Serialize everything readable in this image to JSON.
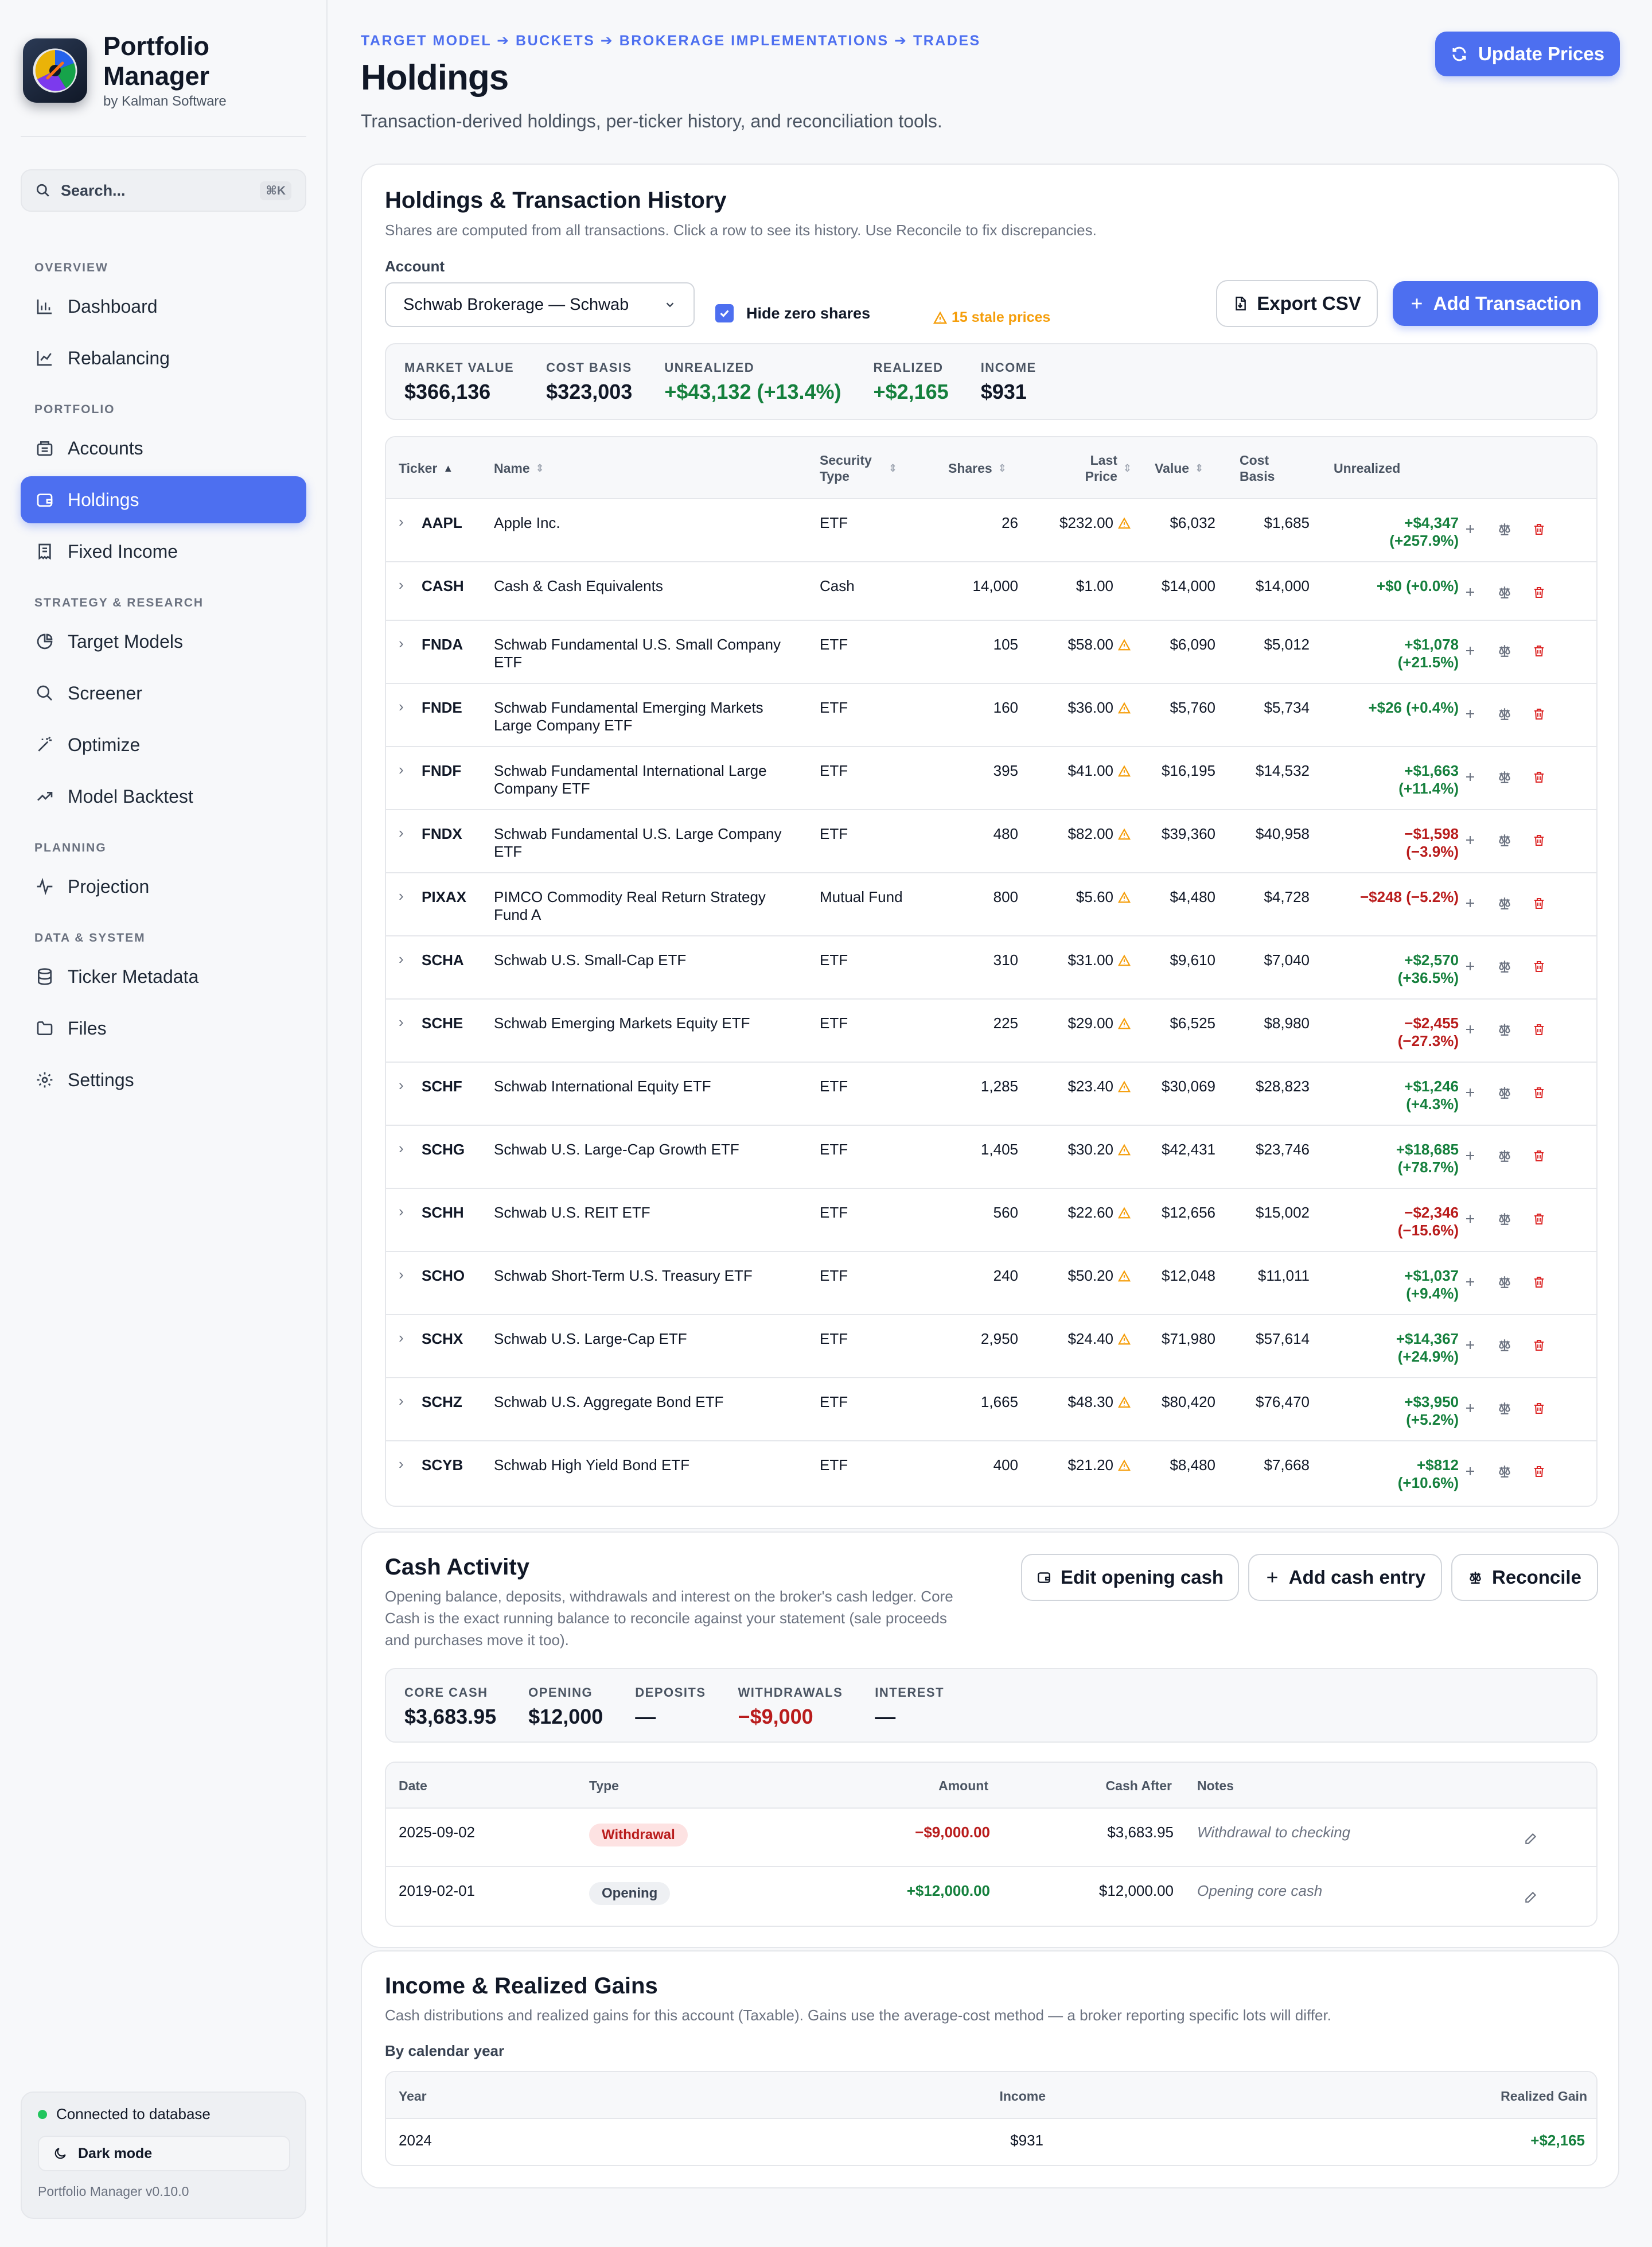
{
  "app": {
    "title": "Portfolio Manager",
    "company": "by Kalman Software",
    "version": "Portfolio Manager v0.10.0"
  },
  "search": {
    "placeholder": "Search...",
    "shortcut": "⌘K"
  },
  "sidebar": {
    "sections": [
      {
        "label": "OVERVIEW",
        "items": [
          {
            "label": "Dashboard",
            "icon": "bar-chart-icon"
          },
          {
            "label": "Rebalancing",
            "icon": "line-chart-icon"
          }
        ]
      },
      {
        "label": "PORTFOLIO",
        "items": [
          {
            "label": "Accounts",
            "icon": "bank-icon"
          },
          {
            "label": "Holdings",
            "icon": "wallet-icon",
            "active": true
          },
          {
            "label": "Fixed Income",
            "icon": "receipt-icon"
          }
        ]
      },
      {
        "label": "STRATEGY & RESEARCH",
        "items": [
          {
            "label": "Target Models",
            "icon": "pie-chart-icon"
          },
          {
            "label": "Screener",
            "icon": "search-icon"
          },
          {
            "label": "Optimize",
            "icon": "magic-wand-icon"
          },
          {
            "label": "Model Backtest",
            "icon": "trending-up-icon"
          }
        ]
      },
      {
        "label": "PLANNING",
        "items": [
          {
            "label": "Projection",
            "icon": "activity-icon"
          }
        ]
      },
      {
        "label": "DATA & SYSTEM",
        "items": [
          {
            "label": "Ticker Metadata",
            "icon": "database-icon"
          },
          {
            "label": "Files",
            "icon": "folder-icon"
          },
          {
            "label": "Settings",
            "icon": "gear-icon"
          }
        ]
      }
    ],
    "status": "Connected to database",
    "dark_mode": "Dark mode"
  },
  "page": {
    "breadcrumb": "TARGET MODEL ➔ BUCKETS ➔ BROKERAGE IMPLEMENTATIONS ➔ TRADES",
    "title": "Holdings",
    "subtitle": "Transaction-derived holdings, per-ticker history, and reconciliation tools.",
    "update_prices": "Update Prices"
  },
  "holdings": {
    "title": "Holdings & Transaction History",
    "subtitle": "Shares are computed from all transactions. Click a row to see its history. Use Reconcile to fix discrepancies.",
    "account_label": "Account",
    "account_value": "Schwab Brokerage — Schwab",
    "hide_zero": "Hide zero shares",
    "stale": "15 stale prices",
    "export": "Export CSV",
    "add_tx": "Add Transaction",
    "summary": [
      {
        "label": "MARKET VALUE",
        "value": "$366,136",
        "tone": ""
      },
      {
        "label": "COST BASIS",
        "value": "$323,003",
        "tone": ""
      },
      {
        "label": "UNREALIZED",
        "value": "+$43,132 (+13.4%)",
        "tone": "green"
      },
      {
        "label": "REALIZED",
        "value": "+$2,165",
        "tone": "green"
      },
      {
        "label": "INCOME",
        "value": "$931",
        "tone": ""
      }
    ],
    "columns": {
      "ticker": "Ticker",
      "name": "Name",
      "type": "Security Type",
      "shares": "Shares",
      "price": "Last Price",
      "value": "Value",
      "cost": "Cost Basis",
      "unrealized": "Unrealized"
    },
    "rows": [
      {
        "ticker": "AAPL",
        "name": "Apple Inc.",
        "type": "ETF",
        "shares": "26",
        "price": "$232.00",
        "stale": true,
        "value": "$6,032",
        "cost": "$1,685",
        "unr1": "+$4,347",
        "unr2": "(+257.9%)",
        "tone": "green"
      },
      {
        "ticker": "CASH",
        "name": "Cash & Cash Equivalents",
        "type": "Cash",
        "shares": "14,000",
        "price": "$1.00",
        "stale": false,
        "value": "$14,000",
        "cost": "$14,000",
        "unr1": "+$0 (+0.0%)",
        "unr2": "",
        "tone": "green",
        "short": true
      },
      {
        "ticker": "FNDA",
        "name": "Schwab Fundamental U.S. Small Company ETF",
        "type": "ETF",
        "shares": "105",
        "price": "$58.00",
        "stale": true,
        "value": "$6,090",
        "cost": "$5,012",
        "unr1": "+$1,078",
        "unr2": "(+21.5%)",
        "tone": "green"
      },
      {
        "ticker": "FNDE",
        "name": "Schwab Fundamental Emerging Markets Large Company ETF",
        "type": "ETF",
        "shares": "160",
        "price": "$36.00",
        "stale": true,
        "value": "$5,760",
        "cost": "$5,734",
        "unr1": "+$26 (+0.4%)",
        "unr2": "",
        "tone": "green"
      },
      {
        "ticker": "FNDF",
        "name": "Schwab Fundamental International Large Company ETF",
        "type": "ETF",
        "shares": "395",
        "price": "$41.00",
        "stale": true,
        "value": "$16,195",
        "cost": "$14,532",
        "unr1": "+$1,663",
        "unr2": "(+11.4%)",
        "tone": "green"
      },
      {
        "ticker": "FNDX",
        "name": "Schwab Fundamental U.S. Large Company ETF",
        "type": "ETF",
        "shares": "480",
        "price": "$82.00",
        "stale": true,
        "value": "$39,360",
        "cost": "$40,958",
        "unr1": "−$1,598",
        "unr2": "(−3.9%)",
        "tone": "red"
      },
      {
        "ticker": "PIXAX",
        "name": "PIMCO Commodity Real Return Strategy Fund A",
        "type": "Mutual Fund",
        "shares": "800",
        "price": "$5.60",
        "stale": true,
        "value": "$4,480",
        "cost": "$4,728",
        "unr1": "−$248 (−5.2%)",
        "unr2": "",
        "tone": "red"
      },
      {
        "ticker": "SCHA",
        "name": "Schwab U.S. Small-Cap ETF",
        "type": "ETF",
        "shares": "310",
        "price": "$31.00",
        "stale": true,
        "value": "$9,610",
        "cost": "$7,040",
        "unr1": "+$2,570",
        "unr2": "(+36.5%)",
        "tone": "green"
      },
      {
        "ticker": "SCHE",
        "name": "Schwab Emerging Markets Equity ETF",
        "type": "ETF",
        "shares": "225",
        "price": "$29.00",
        "stale": true,
        "value": "$6,525",
        "cost": "$8,980",
        "unr1": "−$2,455",
        "unr2": "(−27.3%)",
        "tone": "red"
      },
      {
        "ticker": "SCHF",
        "name": "Schwab International Equity ETF",
        "type": "ETF",
        "shares": "1,285",
        "price": "$23.40",
        "stale": true,
        "value": "$30,069",
        "cost": "$28,823",
        "unr1": "+$1,246",
        "unr2": "(+4.3%)",
        "tone": "green"
      },
      {
        "ticker": "SCHG",
        "name": "Schwab U.S. Large-Cap Growth ETF",
        "type": "ETF",
        "shares": "1,405",
        "price": "$30.20",
        "stale": true,
        "value": "$42,431",
        "cost": "$23,746",
        "unr1": "+$18,685",
        "unr2": "(+78.7%)",
        "tone": "green"
      },
      {
        "ticker": "SCHH",
        "name": "Schwab U.S. REIT ETF",
        "type": "ETF",
        "shares": "560",
        "price": "$22.60",
        "stale": true,
        "value": "$12,656",
        "cost": "$15,002",
        "unr1": "−$2,346",
        "unr2": "(−15.6%)",
        "tone": "red"
      },
      {
        "ticker": "SCHO",
        "name": "Schwab Short-Term U.S. Treasury ETF",
        "type": "ETF",
        "shares": "240",
        "price": "$50.20",
        "stale": true,
        "value": "$12,048",
        "cost": "$11,011",
        "unr1": "+$1,037",
        "unr2": "(+9.4%)",
        "tone": "green"
      },
      {
        "ticker": "SCHX",
        "name": "Schwab U.S. Large-Cap ETF",
        "type": "ETF",
        "shares": "2,950",
        "price": "$24.40",
        "stale": true,
        "value": "$71,980",
        "cost": "$57,614",
        "unr1": "+$14,367",
        "unr2": "(+24.9%)",
        "tone": "green"
      },
      {
        "ticker": "SCHZ",
        "name": "Schwab U.S. Aggregate Bond ETF",
        "type": "ETF",
        "shares": "1,665",
        "price": "$48.30",
        "stale": true,
        "value": "$80,420",
        "cost": "$76,470",
        "unr1": "+$3,950",
        "unr2": "(+5.2%)",
        "tone": "green"
      },
      {
        "ticker": "SCYB",
        "name": "Schwab High Yield Bond ETF",
        "type": "ETF",
        "shares": "400",
        "price": "$21.20",
        "stale": true,
        "value": "$8,480",
        "cost": "$7,668",
        "unr1": "+$812",
        "unr2": "(+10.6%)",
        "tone": "green"
      }
    ]
  },
  "cash": {
    "title": "Cash Activity",
    "subtitle_lines": [
      "Opening balance, deposits, withdrawals and interest on the broker's cash ledger. Core",
      "Cash is the exact running balance to reconcile against your statement (sale proceeds",
      "and purchases move it too)."
    ],
    "edit_opening": "Edit opening cash",
    "add_entry": "Add cash entry",
    "reconcile": "Reconcile",
    "summary": [
      {
        "label": "CORE CASH",
        "value": "$3,683.95",
        "tone": ""
      },
      {
        "label": "OPENING",
        "value": "$12,000",
        "tone": ""
      },
      {
        "label": "DEPOSITS",
        "value": "—",
        "tone": ""
      },
      {
        "label": "WITHDRAWALS",
        "value": "−$9,000",
        "tone": "red"
      },
      {
        "label": "INTEREST",
        "value": "—",
        "tone": ""
      }
    ],
    "columns": {
      "date": "Date",
      "type": "Type",
      "amount": "Amount",
      "after": "Cash After",
      "notes": "Notes"
    },
    "rows": [
      {
        "date": "2025-09-02",
        "type": "Withdrawal",
        "type_tone": "red",
        "amount": "−$9,000.00",
        "tone": "red",
        "after": "$3,683.95",
        "notes": "Withdrawal to checking"
      },
      {
        "date": "2019-02-01",
        "type": "Opening",
        "type_tone": "gray",
        "amount": "+$12,000.00",
        "tone": "green",
        "after": "$12,000.00",
        "notes": "Opening core cash"
      }
    ]
  },
  "income": {
    "title": "Income & Realized Gains",
    "subtitle": "Cash distributions and realized gains for this account (Taxable). Gains use the average-cost method — a broker reporting specific lots will differ.",
    "by_year": "By calendar year",
    "columns": {
      "year": "Year",
      "income": "Income",
      "gain": "Realized Gain"
    },
    "rows": [
      {
        "year": "2024",
        "income": "$931",
        "gain": "+$2,165"
      }
    ]
  },
  "colors": {
    "accent": "#4d6ff0",
    "positive": "#15803d",
    "negative": "#b91c1c",
    "warning": "#f59e0b"
  }
}
